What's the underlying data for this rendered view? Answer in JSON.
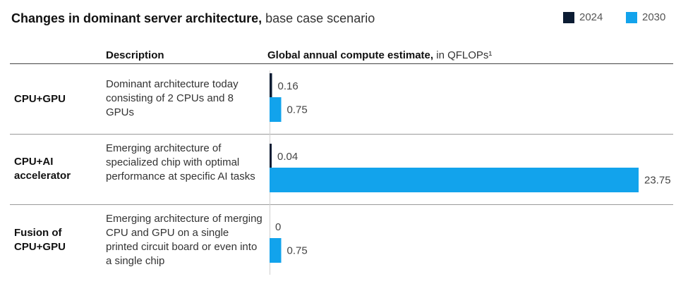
{
  "title": {
    "bold": "Changes in dominant server architecture,",
    "rest": " base case scenario"
  },
  "legend": [
    {
      "label": "2024",
      "color": "#0b1c33"
    },
    {
      "label": "2030",
      "color": "#12a3ec"
    }
  ],
  "headers": {
    "description": "Description",
    "estimate_bold": "Global annual compute estimate,",
    "estimate_unit": " in QFLOPs¹"
  },
  "rows": [
    {
      "category": "CPU+GPU",
      "description": "Dominant architecture today consisting of 2 CPUs and 8 GPUs"
    },
    {
      "category": "CPU+AI accelerator",
      "description": "Emerging architecture of specialized chip with optimal performance at specific AI tasks"
    },
    {
      "category": "Fusion of CPU+GPU",
      "description": "Emerging architecture of merging CPU and GPU on a single printed circuit board or even into a single chip"
    }
  ],
  "chart_data": {
    "type": "bar",
    "orientation": "horizontal",
    "categories": [
      "CPU+GPU",
      "CPU+AI accelerator",
      "Fusion of CPU+GPU"
    ],
    "series": [
      {
        "name": "2024",
        "values": [
          0.16,
          0.04,
          0
        ],
        "labels": [
          "0.16",
          "0.04",
          "0"
        ],
        "color": "#0b1c33"
      },
      {
        "name": "2030",
        "values": [
          0.75,
          23.75,
          0.75
        ],
        "labels": [
          "0.75",
          "23.75",
          "0.75"
        ],
        "color": "#12a3ec"
      }
    ],
    "title": "Changes in dominant server architecture, base case scenario",
    "xlabel": "Global annual compute estimate, in QFLOPs¹",
    "xlim": [
      0,
      23.75
    ],
    "legend_position": "top-right",
    "grid": false
  }
}
